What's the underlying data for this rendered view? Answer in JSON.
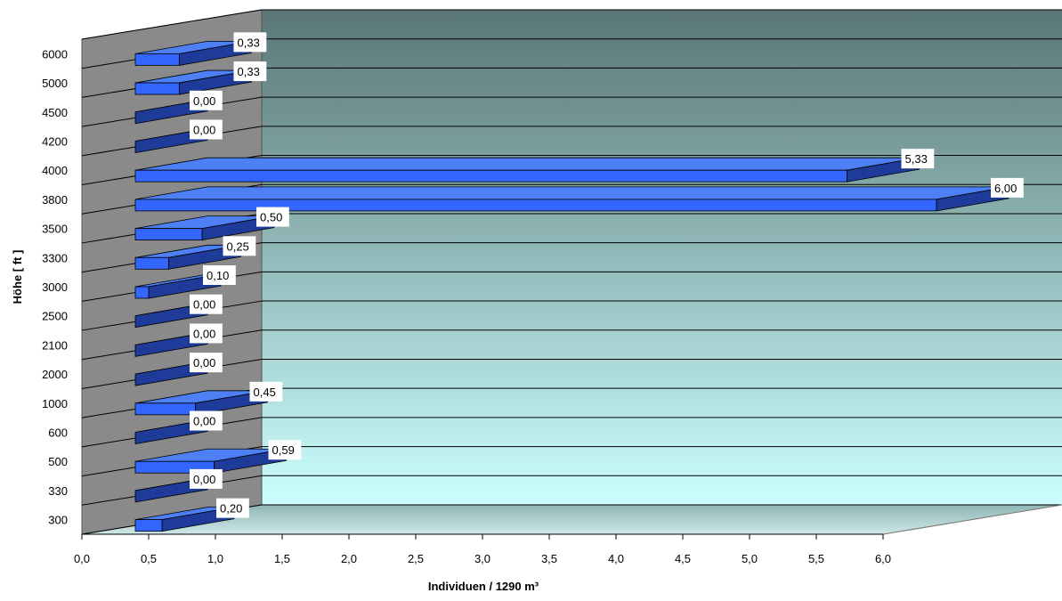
{
  "chart_data": {
    "type": "bar",
    "orientation": "horizontal",
    "style": "3d",
    "title": "",
    "xlabel": "Individuen / 1290 m³",
    "ylabel": "Höhe [ ft ]",
    "xlim": [
      0,
      6
    ],
    "x_ticks": [
      "0,0",
      "0,5",
      "1,0",
      "1,5",
      "2,0",
      "2,5",
      "3,0",
      "3,5",
      "4,0",
      "4,5",
      "5,0",
      "5,5",
      "6,0"
    ],
    "categories": [
      "300",
      "330",
      "500",
      "600",
      "1000",
      "2000",
      "2100",
      "2500",
      "3000",
      "3300",
      "3500",
      "3800",
      "4000",
      "4200",
      "4500",
      "5000",
      "6000"
    ],
    "values": [
      0.2,
      0.0,
      0.59,
      0.0,
      0.45,
      0.0,
      0.0,
      0.0,
      0.1,
      0.25,
      0.5,
      6.0,
      5.33,
      0.0,
      0.0,
      0.33,
      0.33
    ],
    "data_labels": [
      "0,20",
      "0,00",
      "0,59",
      "0,00",
      "0,45",
      "0,00",
      "0,00",
      "0,00",
      "0,10",
      "0,25",
      "0,50",
      "6,00",
      "5,33",
      "0,00",
      "0,00",
      "0,33",
      "0,33"
    ],
    "grid": true,
    "legend": "none",
    "colors": {
      "bar_front": "#3366ff",
      "bar_top": "#4d7ff5",
      "bar_side": "#1f3b99",
      "background_top": "#5a7676",
      "background_bottom": "#ccffff",
      "side_wall": "#8a8a8a"
    }
  }
}
